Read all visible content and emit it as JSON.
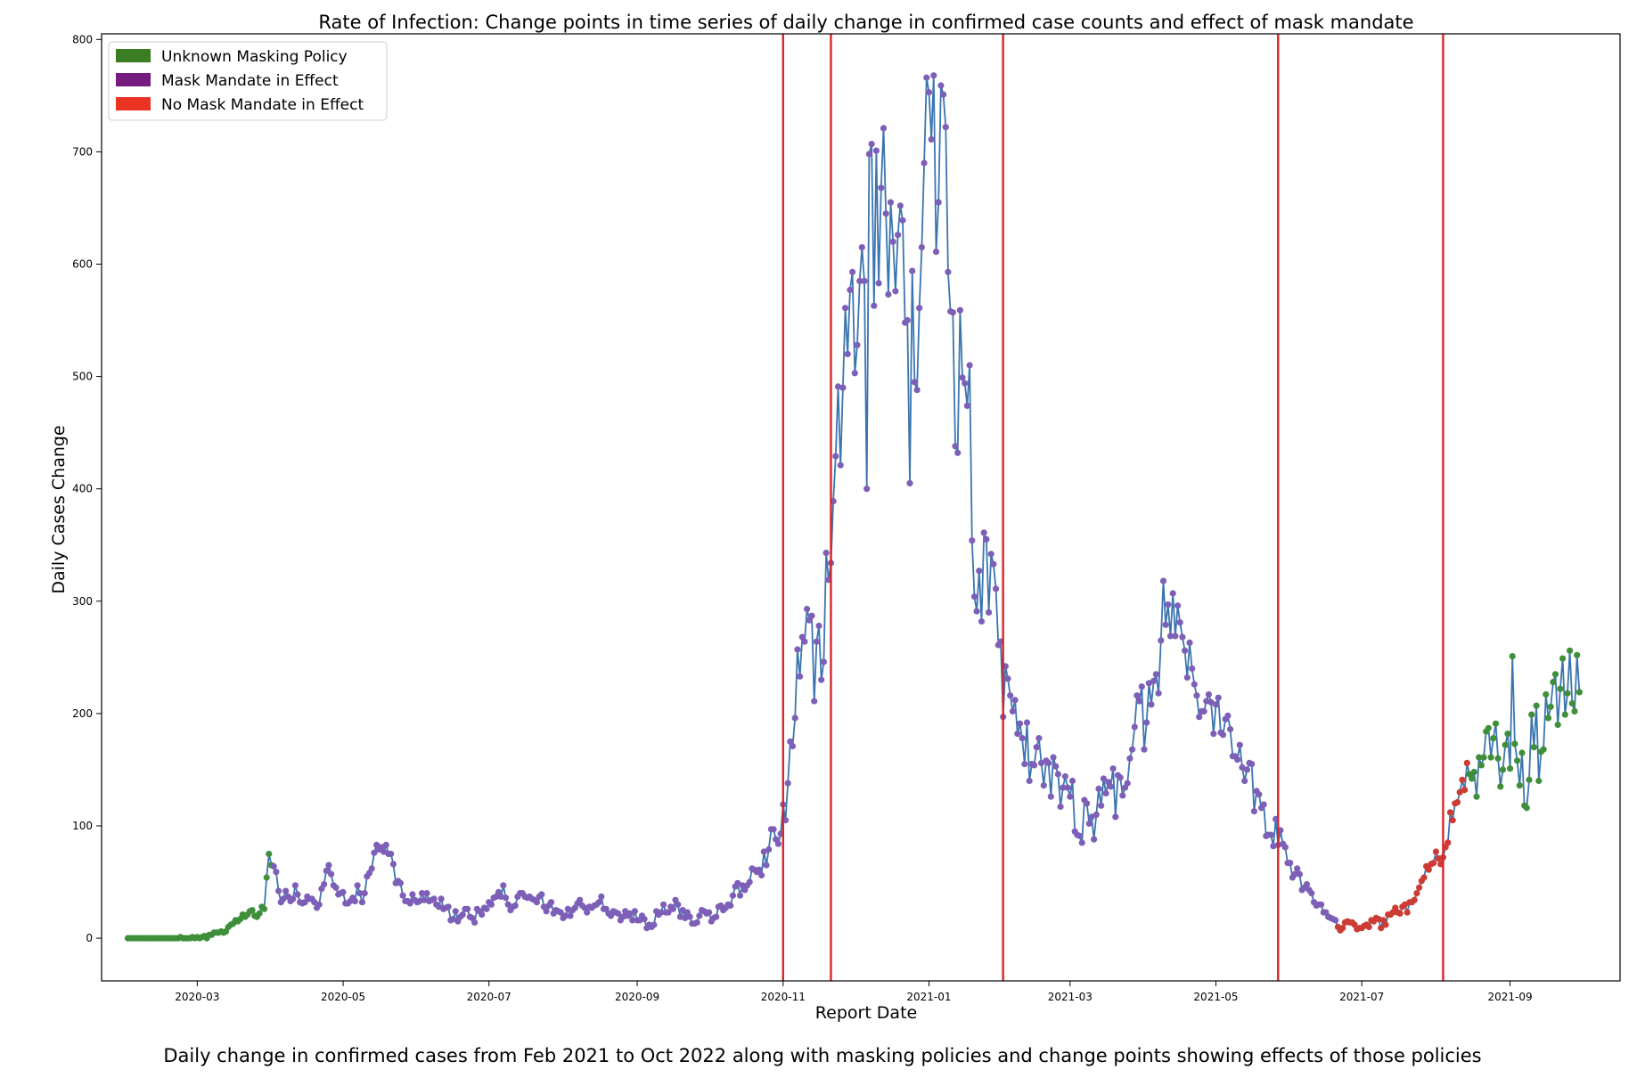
{
  "chart_data": {
    "type": "scatter",
    "title": "Rate of Infection: Change points in time series of daily change in confirmed case counts and effect of mask mandate",
    "xlabel": "Report Date",
    "ylabel": "Daily Cases Change",
    "caption": "Daily change in confirmed cases from Feb 2021 to Oct 2022 along with masking policies and change points showing effects of those policies",
    "x_ticks": [
      "2020-03",
      "2020-05",
      "2020-07",
      "2020-09",
      "2020-11",
      "2021-01",
      "2021-03",
      "2021-05",
      "2021-07",
      "2021-09"
    ],
    "y_ticks": [
      0,
      100,
      200,
      300,
      400,
      500,
      600,
      700,
      800
    ],
    "xlim": [
      "2020-01-21",
      "2021-10-17"
    ],
    "ylim": [
      -38,
      805
    ],
    "grid": false,
    "legend_position": "top-left",
    "line_color": "#3b75af",
    "changepoint_color": "#d62728",
    "legend": [
      {
        "label": "Unknown Masking Policy",
        "color": "#3a7d23"
      },
      {
        "label": "Mask Mandate in Effect",
        "color": "#761b7f"
      },
      {
        "label": "No Mask Mandate in Effect",
        "color": "#ea3323"
      }
    ],
    "point_colors": {
      "unknown": "#3f8f3a",
      "mask": "#7e5fb8",
      "none": "#cc3b34"
    },
    "policy_periods": [
      {
        "policy": "unknown",
        "start": "2020-02-01",
        "end": "2020-04-01"
      },
      {
        "policy": "mask",
        "start": "2020-04-02",
        "end": "2021-06-20"
      },
      {
        "policy": "none",
        "start": "2021-06-21",
        "end": "2021-08-14"
      },
      {
        "policy": "unknown",
        "start": "2021-08-15",
        "end": "2021-09-30"
      }
    ],
    "change_points": [
      "2020-11-01",
      "2020-11-21",
      "2021-02-01",
      "2021-05-27",
      "2021-08-04"
    ],
    "anchors": [
      [
        "2020-02-01",
        0
      ],
      [
        "2020-03-01",
        0
      ],
      [
        "2020-03-05",
        1
      ],
      [
        "2020-03-12",
        6
      ],
      [
        "2020-03-20",
        20
      ],
      [
        "2020-03-29",
        24
      ],
      [
        "2020-03-31",
        80
      ],
      [
        "2020-04-05",
        35
      ],
      [
        "2020-04-10",
        40
      ],
      [
        "2020-04-20",
        28
      ],
      [
        "2020-04-25",
        62
      ],
      [
        "2020-05-01",
        38
      ],
      [
        "2020-05-10",
        40
      ],
      [
        "2020-05-15",
        85
      ],
      [
        "2020-05-20",
        75
      ],
      [
        "2020-05-27",
        30
      ],
      [
        "2020-06-05",
        40
      ],
      [
        "2020-06-15",
        22
      ],
      [
        "2020-06-25",
        18
      ],
      [
        "2020-07-05",
        45
      ],
      [
        "2020-07-10",
        32
      ],
      [
        "2020-07-20",
        35
      ],
      [
        "2020-08-01",
        22
      ],
      [
        "2020-08-15",
        32
      ],
      [
        "2020-08-25",
        20
      ],
      [
        "2020-09-05",
        15
      ],
      [
        "2020-09-15",
        28
      ],
      [
        "2020-09-25",
        18
      ],
      [
        "2020-10-05",
        25
      ],
      [
        "2020-10-15",
        45
      ],
      [
        "2020-10-25",
        72
      ],
      [
        "2020-11-01",
        110
      ],
      [
        "2020-11-05",
        190
      ],
      [
        "2020-11-10",
        280
      ],
      [
        "2020-11-15",
        230
      ],
      [
        "2020-11-20",
        330
      ],
      [
        "2020-11-25",
        460
      ],
      [
        "2020-11-30",
        560
      ],
      [
        "2020-12-05",
        640
      ],
      [
        "2020-12-12",
        650
      ],
      [
        "2020-12-20",
        590
      ],
      [
        "2020-12-26",
        520
      ],
      [
        "2020-12-31",
        700
      ],
      [
        "2021-01-06",
        690
      ],
      [
        "2021-01-12",
        500
      ],
      [
        "2021-01-16",
        520
      ],
      [
        "2021-01-21",
        330
      ],
      [
        "2021-01-28",
        300
      ],
      [
        "2021-02-01",
        220
      ],
      [
        "2021-02-05",
        210
      ],
      [
        "2021-02-10",
        170
      ],
      [
        "2021-02-20",
        145
      ],
      [
        "2021-03-01",
        130
      ],
      [
        "2021-03-08",
        95
      ],
      [
        "2021-03-15",
        140
      ],
      [
        "2021-03-22",
        125
      ],
      [
        "2021-03-28",
        190
      ],
      [
        "2021-04-05",
        200
      ],
      [
        "2021-04-10",
        300
      ],
      [
        "2021-04-18",
        255
      ],
      [
        "2021-04-25",
        210
      ],
      [
        "2021-05-05",
        200
      ],
      [
        "2021-05-12",
        160
      ],
      [
        "2021-05-20",
        120
      ],
      [
        "2021-05-27",
        90
      ],
      [
        "2021-06-05",
        50
      ],
      [
        "2021-06-15",
        25
      ],
      [
        "2021-06-22",
        10
      ],
      [
        "2021-07-01",
        13
      ],
      [
        "2021-07-10",
        14
      ],
      [
        "2021-07-20",
        30
      ],
      [
        "2021-07-28",
        62
      ],
      [
        "2021-08-04",
        80
      ],
      [
        "2021-08-10",
        130
      ],
      [
        "2021-08-17",
        145
      ],
      [
        "2021-08-25",
        160
      ],
      [
        "2021-09-01",
        170
      ],
      [
        "2021-09-08",
        150
      ],
      [
        "2021-09-15",
        185
      ],
      [
        "2021-09-22",
        210
      ],
      [
        "2021-09-30",
        240
      ]
    ],
    "noise_amplitude": [
      [
        "2020-02-01",
        0
      ],
      [
        "2020-03-20",
        2
      ],
      [
        "2020-04-01",
        9
      ],
      [
        "2020-06-01",
        7
      ],
      [
        "2020-10-20",
        8
      ],
      [
        "2020-11-05",
        30
      ],
      [
        "2020-11-25",
        60
      ],
      [
        "2020-12-10",
        95
      ],
      [
        "2021-01-15",
        85
      ],
      [
        "2021-02-01",
        25
      ],
      [
        "2021-04-01",
        30
      ],
      [
        "2021-05-20",
        22
      ],
      [
        "2021-06-10",
        4
      ],
      [
        "2021-07-15",
        5
      ],
      [
        "2021-08-05",
        14
      ],
      [
        "2021-09-01",
        40
      ],
      [
        "2021-09-30",
        38
      ]
    ],
    "peaks": [
      [
        "2020-12-31",
        766
      ],
      [
        "2021-01-06",
        759
      ],
      [
        "2021-01-07",
        751
      ],
      [
        "2020-12-13",
        721
      ],
      [
        "2021-01-08",
        722
      ],
      [
        "2020-12-07",
        698
      ],
      [
        "2021-04-09",
        318
      ],
      [
        "2021-09-02",
        251
      ],
      [
        "2021-09-26",
        256
      ],
      [
        "2020-12-06",
        400
      ],
      [
        "2020-12-24",
        405
      ]
    ]
  }
}
